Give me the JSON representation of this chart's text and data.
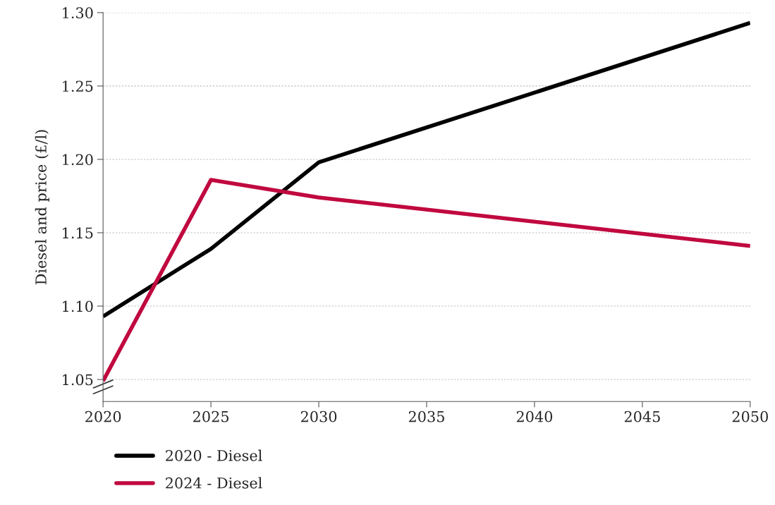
{
  "chart_data": {
    "type": "line",
    "ylabel": "Diesel and price (£/l)",
    "x": [
      2020,
      2025,
      2030,
      2050
    ],
    "series": [
      {
        "name": "2020 - Diesel",
        "color": "#000000",
        "values": [
          1.093,
          1.139,
          1.198,
          1.293
        ]
      },
      {
        "name": "2024 - Diesel",
        "color": "#c0093f",
        "values": [
          1.049,
          1.186,
          1.174,
          1.141
        ]
      }
    ],
    "xlim": [
      2020,
      2050
    ],
    "xticks": [
      2020,
      2025,
      2030,
      2035,
      2040,
      2045,
      2050
    ],
    "ylim": [
      1.035,
      1.3
    ],
    "yticks": [
      {
        "value": 1.05,
        "label": "1.05"
      },
      {
        "value": 1.1,
        "label": "1.10"
      },
      {
        "value": 1.15,
        "label": "1.15"
      },
      {
        "value": 1.2,
        "label": "1.20"
      },
      {
        "value": 1.25,
        "label": "1.25"
      },
      {
        "value": 1.3,
        "label": "1.30"
      }
    ],
    "grid": "y",
    "legend": "bottom left",
    "marker": "none",
    "line_style": "solid"
  }
}
